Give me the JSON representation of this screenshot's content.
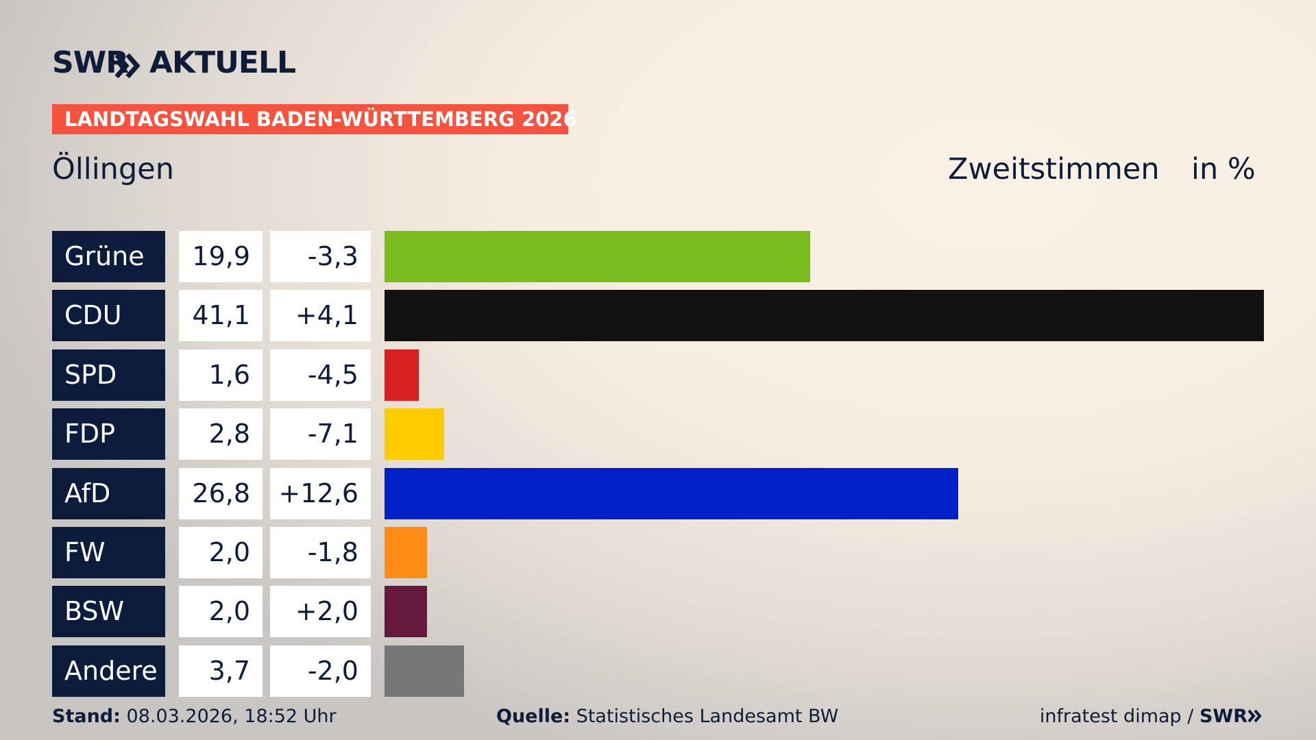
{
  "header": {
    "logo_left": "SWR",
    "logo_right": "AKTUELL",
    "banner": "LANDTAGSWAHL BADEN-WÜRTTEMBERG 2026"
  },
  "chart_data": {
    "type": "bar",
    "title": "Öllingen",
    "value_heading": "Zweitstimmen",
    "unit_heading": "in %",
    "categories": [
      "Grüne",
      "CDU",
      "SPD",
      "FDP",
      "AfD",
      "FW",
      "BSW",
      "Andere"
    ],
    "values": [
      19.9,
      41.1,
      1.6,
      2.8,
      26.8,
      2.0,
      2.0,
      3.7
    ],
    "value_labels": [
      "19,9",
      "41,1",
      "1,6",
      "2,8",
      "26,8",
      "2,0",
      "2,0",
      "3,7"
    ],
    "changes": [
      "-3,3",
      "+4,1",
      "-4,5",
      "-7,1",
      "+12,6",
      "-1,8",
      "+2,0",
      "-2,0"
    ],
    "colors": [
      "#7bbd1e",
      "#121212",
      "#d7201f",
      "#ffcc00",
      "#0021c8",
      "#ff8c16",
      "#651a3c",
      "#777777"
    ]
  },
  "footer": {
    "stand_label": "Stand:",
    "stand": "08.03.2026, 18:52 Uhr",
    "source_label": "Quelle:",
    "source": "Statistisches Landesamt BW",
    "credit": "infratest dimap /",
    "credit_logo": "SWR"
  }
}
